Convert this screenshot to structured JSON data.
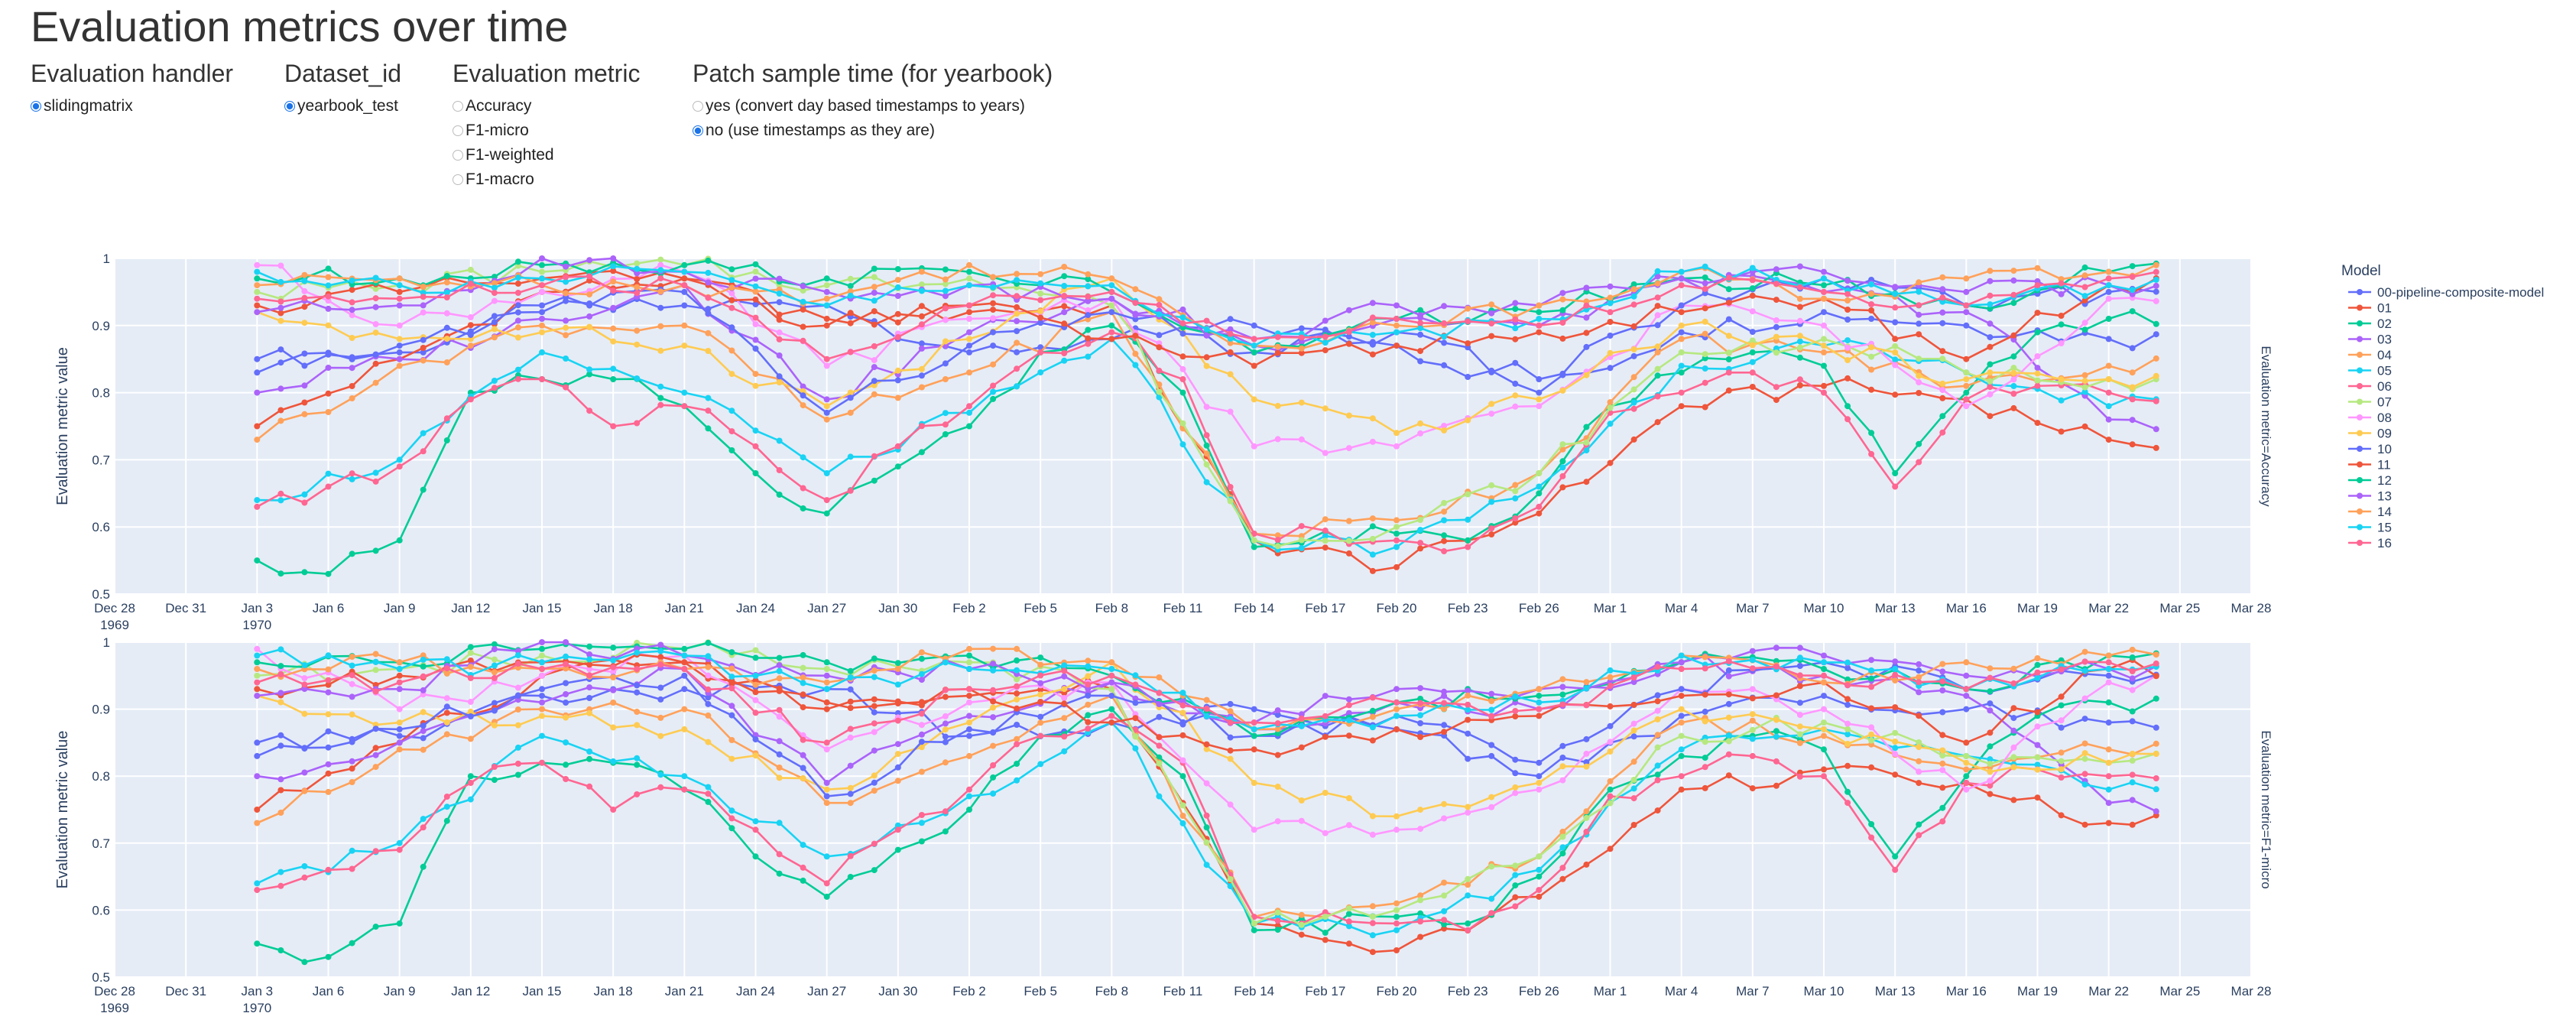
{
  "page_title": "Evaluation metrics over time",
  "controls": [
    {
      "label": "Evaluation handler",
      "options": [
        {
          "text": "slidingmatrix",
          "selected": true
        }
      ]
    },
    {
      "label": "Dataset_id",
      "options": [
        {
          "text": "yearbook_test",
          "selected": true
        }
      ]
    },
    {
      "label": "Evaluation metric",
      "options": [
        {
          "text": "Accuracy",
          "selected": false
        },
        {
          "text": "F1-micro",
          "selected": false
        },
        {
          "text": "F1-weighted",
          "selected": false
        },
        {
          "text": "F1-macro",
          "selected": false
        }
      ]
    },
    {
      "label": "Patch sample time (for yearbook)",
      "options": [
        {
          "text": "yes (convert day based timestamps to years)",
          "selected": false
        },
        {
          "text": "no (use timestamps as they are)",
          "selected": true
        }
      ]
    }
  ],
  "chart_data": {
    "type": "line",
    "legend_title": "Model",
    "legend_position": "right",
    "ylabel": "Evaluation metric value",
    "ylim": [
      0.5,
      1.0
    ],
    "yticks": [
      "0.5",
      "0.6",
      "0.7",
      "0.8",
      "0.9",
      "1"
    ],
    "xticks": [
      {
        "l1": "Dec 28",
        "l2": "1969"
      },
      {
        "l1": "Dec 31"
      },
      {
        "l1": "Jan 3",
        "l2": "1970"
      },
      {
        "l1": "Jan 6"
      },
      {
        "l1": "Jan 9"
      },
      {
        "l1": "Jan 12"
      },
      {
        "l1": "Jan 15"
      },
      {
        "l1": "Jan 18"
      },
      {
        "l1": "Jan 21"
      },
      {
        "l1": "Jan 24"
      },
      {
        "l1": "Jan 27"
      },
      {
        "l1": "Jan 30"
      },
      {
        "l1": "Feb 2"
      },
      {
        "l1": "Feb 5"
      },
      {
        "l1": "Feb 8"
      },
      {
        "l1": "Feb 11"
      },
      {
        "l1": "Feb 14"
      },
      {
        "l1": "Feb 17"
      },
      {
        "l1": "Feb 20"
      },
      {
        "l1": "Feb 23"
      },
      {
        "l1": "Feb 26"
      },
      {
        "l1": "Mar 1"
      },
      {
        "l1": "Mar 4"
      },
      {
        "l1": "Mar 7"
      },
      {
        "l1": "Mar 10"
      },
      {
        "l1": "Mar 13"
      },
      {
        "l1": "Mar 16"
      },
      {
        "l1": "Mar 19"
      },
      {
        "l1": "Mar 22"
      },
      {
        "l1": "Mar 25"
      },
      {
        "l1": "Mar 28"
      }
    ],
    "x_start": "1970-01-02",
    "x_end": "1970-03-26",
    "facets": [
      "Evaluation metric=Accuracy",
      "Evaluation metric=F1-micro"
    ],
    "series": [
      {
        "name": "00-pipeline-composite-model",
        "color": "#636efa",
        "points": [
          [
            0,
            0.85
          ],
          [
            6,
            0.86
          ],
          [
            12,
            0.92
          ],
          [
            18,
            0.93
          ],
          [
            24,
            0.93
          ],
          [
            30,
            0.86
          ],
          [
            36,
            0.88
          ],
          [
            42,
            0.9
          ],
          [
            48,
            0.87
          ],
          [
            54,
            0.8
          ],
          [
            60,
            0.89
          ],
          [
            66,
            0.92
          ],
          [
            72,
            0.9
          ],
          [
            78,
            0.88
          ]
        ]
      },
      {
        "name": "01",
        "color": "#EF553B",
        "points": [
          [
            0,
            0.75
          ],
          [
            6,
            0.85
          ],
          [
            12,
            0.95
          ],
          [
            18,
            0.97
          ],
          [
            24,
            0.91
          ],
          [
            30,
            0.92
          ],
          [
            36,
            0.93
          ],
          [
            42,
            0.58
          ],
          [
            48,
            0.54
          ],
          [
            54,
            0.62
          ],
          [
            60,
            0.78
          ],
          [
            66,
            0.81
          ],
          [
            72,
            0.79
          ],
          [
            78,
            0.73
          ]
        ]
      },
      {
        "name": "02",
        "color": "#00cc96",
        "points": [
          [
            0,
            0.55
          ],
          [
            3,
            0.53
          ],
          [
            6,
            0.58
          ],
          [
            9,
            0.8
          ],
          [
            12,
            0.82
          ],
          [
            15,
            0.82
          ],
          [
            18,
            0.78
          ],
          [
            21,
            0.68
          ],
          [
            24,
            0.62
          ],
          [
            27,
            0.69
          ],
          [
            30,
            0.75
          ],
          [
            33,
            0.86
          ],
          [
            36,
            0.9
          ],
          [
            39,
            0.8
          ],
          [
            42,
            0.57
          ],
          [
            48,
            0.59
          ],
          [
            51,
            0.58
          ],
          [
            54,
            0.65
          ],
          [
            57,
            0.78
          ],
          [
            60,
            0.83
          ],
          [
            63,
            0.86
          ],
          [
            66,
            0.84
          ],
          [
            69,
            0.68
          ],
          [
            72,
            0.8
          ],
          [
            75,
            0.89
          ],
          [
            78,
            0.91
          ]
        ]
      },
      {
        "name": "03",
        "color": "#ab63fa",
        "points": [
          [
            0,
            0.8
          ],
          [
            6,
            0.85
          ],
          [
            12,
            0.91
          ],
          [
            18,
            0.96
          ],
          [
            24,
            0.79
          ],
          [
            30,
            0.89
          ],
          [
            36,
            0.94
          ],
          [
            42,
            0.87
          ],
          [
            48,
            0.91
          ],
          [
            54,
            0.9
          ],
          [
            60,
            0.97
          ],
          [
            66,
            0.95
          ],
          [
            72,
            0.92
          ],
          [
            78,
            0.76
          ]
        ]
      },
      {
        "name": "04",
        "color": "#FFA15A",
        "points": [
          [
            0,
            0.73
          ],
          [
            6,
            0.84
          ],
          [
            12,
            0.9
          ],
          [
            18,
            0.9
          ],
          [
            24,
            0.76
          ],
          [
            30,
            0.83
          ],
          [
            36,
            0.92
          ],
          [
            42,
            0.59
          ],
          [
            48,
            0.61
          ],
          [
            54,
            0.68
          ],
          [
            60,
            0.88
          ],
          [
            66,
            0.86
          ],
          [
            72,
            0.81
          ],
          [
            78,
            0.84
          ]
        ]
      },
      {
        "name": "05",
        "color": "#19d3f3",
        "points": [
          [
            0,
            0.64
          ],
          [
            6,
            0.7
          ],
          [
            12,
            0.86
          ],
          [
            18,
            0.8
          ],
          [
            24,
            0.68
          ],
          [
            30,
            0.77
          ],
          [
            36,
            0.88
          ],
          [
            42,
            0.58
          ],
          [
            48,
            0.57
          ],
          [
            54,
            0.66
          ],
          [
            60,
            0.84
          ],
          [
            66,
            0.87
          ],
          [
            72,
            0.83
          ],
          [
            78,
            0.78
          ]
        ]
      },
      {
        "name": "06",
        "color": "#FF6692",
        "points": [
          [
            0,
            0.63
          ],
          [
            3,
            0.66
          ],
          [
            6,
            0.69
          ],
          [
            9,
            0.79
          ],
          [
            12,
            0.82
          ],
          [
            15,
            0.75
          ],
          [
            18,
            0.78
          ],
          [
            21,
            0.72
          ],
          [
            24,
            0.64
          ],
          [
            27,
            0.72
          ],
          [
            30,
            0.78
          ],
          [
            33,
            0.86
          ],
          [
            36,
            0.89
          ],
          [
            39,
            0.82
          ],
          [
            42,
            0.59
          ],
          [
            48,
            0.58
          ],
          [
            51,
            0.57
          ],
          [
            54,
            0.63
          ],
          [
            57,
            0.77
          ],
          [
            60,
            0.8
          ],
          [
            63,
            0.83
          ],
          [
            66,
            0.8
          ],
          [
            69,
            0.66
          ],
          [
            72,
            0.79
          ],
          [
            75,
            0.81
          ],
          [
            78,
            0.8
          ]
        ]
      },
      {
        "name": "07",
        "color": "#B6E880",
        "points": [
          [
            0,
            0.95
          ],
          [
            6,
            0.96
          ],
          [
            12,
            0.98
          ],
          [
            18,
            0.99
          ],
          [
            24,
            0.96
          ],
          [
            30,
            0.97
          ],
          [
            36,
            0.93
          ],
          [
            42,
            0.58
          ],
          [
            48,
            0.6
          ],
          [
            54,
            0.68
          ],
          [
            60,
            0.86
          ],
          [
            66,
            0.88
          ],
          [
            72,
            0.83
          ],
          [
            78,
            0.82
          ]
        ]
      },
      {
        "name": "08",
        "color": "#FF97FF",
        "points": [
          [
            0,
            0.99
          ],
          [
            6,
            0.9
          ],
          [
            12,
            0.95
          ],
          [
            18,
            0.98
          ],
          [
            24,
            0.84
          ],
          [
            30,
            0.91
          ],
          [
            36,
            0.94
          ],
          [
            42,
            0.72
          ],
          [
            48,
            0.72
          ],
          [
            54,
            0.78
          ],
          [
            60,
            0.93
          ],
          [
            66,
            0.9
          ],
          [
            72,
            0.78
          ],
          [
            78,
            0.94
          ]
        ]
      },
      {
        "name": "09",
        "color": "#FECB52",
        "points": [
          [
            0,
            0.92
          ],
          [
            6,
            0.88
          ],
          [
            12,
            0.89
          ],
          [
            18,
            0.87
          ],
          [
            24,
            0.78
          ],
          [
            30,
            0.88
          ],
          [
            36,
            0.97
          ],
          [
            42,
            0.79
          ],
          [
            48,
            0.74
          ],
          [
            54,
            0.79
          ],
          [
            60,
            0.9
          ],
          [
            66,
            0.87
          ],
          [
            72,
            0.82
          ],
          [
            78,
            0.82
          ]
        ]
      },
      {
        "name": "10",
        "color": "#636efa",
        "points": [
          [
            0,
            0.83
          ],
          [
            6,
            0.87
          ],
          [
            12,
            0.93
          ],
          [
            18,
            0.95
          ],
          [
            24,
            0.77
          ],
          [
            30,
            0.87
          ],
          [
            36,
            0.92
          ],
          [
            42,
            0.86
          ],
          [
            48,
            0.89
          ],
          [
            54,
            0.82
          ],
          [
            60,
            0.93
          ],
          [
            66,
            0.97
          ],
          [
            72,
            0.93
          ],
          [
            78,
            0.95
          ]
        ]
      },
      {
        "name": "11",
        "color": "#EF553B",
        "points": [
          [
            0,
            0.93
          ],
          [
            6,
            0.95
          ],
          [
            12,
            0.97
          ],
          [
            18,
            0.97
          ],
          [
            24,
            0.9
          ],
          [
            30,
            0.93
          ],
          [
            36,
            0.88
          ],
          [
            42,
            0.84
          ],
          [
            48,
            0.87
          ],
          [
            54,
            0.89
          ],
          [
            60,
            0.92
          ],
          [
            66,
            0.94
          ],
          [
            72,
            0.85
          ],
          [
            78,
            0.96
          ]
        ]
      },
      {
        "name": "12",
        "color": "#00cc96",
        "points": [
          [
            0,
            0.97
          ],
          [
            6,
            0.97
          ],
          [
            12,
            0.99
          ],
          [
            18,
            0.99
          ],
          [
            24,
            0.97
          ],
          [
            30,
            0.98
          ],
          [
            36,
            0.95
          ],
          [
            42,
            0.86
          ],
          [
            48,
            0.91
          ],
          [
            54,
            0.92
          ],
          [
            60,
            0.97
          ],
          [
            66,
            0.96
          ],
          [
            72,
            0.93
          ],
          [
            78,
            0.98
          ]
        ]
      },
      {
        "name": "13",
        "color": "#ab63fa",
        "points": [
          [
            0,
            0.92
          ],
          [
            6,
            0.93
          ],
          [
            12,
            1.0
          ],
          [
            18,
            0.98
          ],
          [
            24,
            0.95
          ],
          [
            30,
            0.96
          ],
          [
            36,
            0.94
          ],
          [
            42,
            0.88
          ],
          [
            48,
            0.93
          ],
          [
            54,
            0.93
          ],
          [
            60,
            0.97
          ],
          [
            66,
            0.98
          ],
          [
            72,
            0.95
          ],
          [
            78,
            0.96
          ]
        ]
      },
      {
        "name": "14",
        "color": "#FFA15A",
        "points": [
          [
            0,
            0.96
          ],
          [
            6,
            0.97
          ],
          [
            12,
            0.96
          ],
          [
            18,
            0.96
          ],
          [
            24,
            0.94
          ],
          [
            30,
            0.99
          ],
          [
            36,
            0.97
          ],
          [
            42,
            0.87
          ],
          [
            48,
            0.9
          ],
          [
            54,
            0.93
          ],
          [
            60,
            0.98
          ],
          [
            66,
            0.94
          ],
          [
            72,
            0.97
          ],
          [
            78,
            0.98
          ]
        ]
      },
      {
        "name": "15",
        "color": "#19d3f3",
        "points": [
          [
            0,
            0.98
          ],
          [
            6,
            0.96
          ],
          [
            12,
            0.97
          ],
          [
            18,
            0.98
          ],
          [
            24,
            0.93
          ],
          [
            30,
            0.96
          ],
          [
            36,
            0.96
          ],
          [
            42,
            0.87
          ],
          [
            48,
            0.89
          ],
          [
            54,
            0.91
          ],
          [
            60,
            0.98
          ],
          [
            66,
            0.97
          ],
          [
            72,
            0.93
          ],
          [
            78,
            0.96
          ]
        ]
      },
      {
        "name": "16",
        "color": "#FF6692",
        "points": [
          [
            0,
            0.94
          ],
          [
            6,
            0.94
          ],
          [
            12,
            0.96
          ],
          [
            18,
            0.96
          ],
          [
            24,
            0.85
          ],
          [
            30,
            0.93
          ],
          [
            36,
            0.95
          ],
          [
            42,
            0.88
          ],
          [
            48,
            0.91
          ],
          [
            54,
            0.9
          ],
          [
            60,
            0.96
          ],
          [
            66,
            0.95
          ],
          [
            72,
            0.93
          ],
          [
            78,
            0.97
          ]
        ]
      }
    ]
  }
}
